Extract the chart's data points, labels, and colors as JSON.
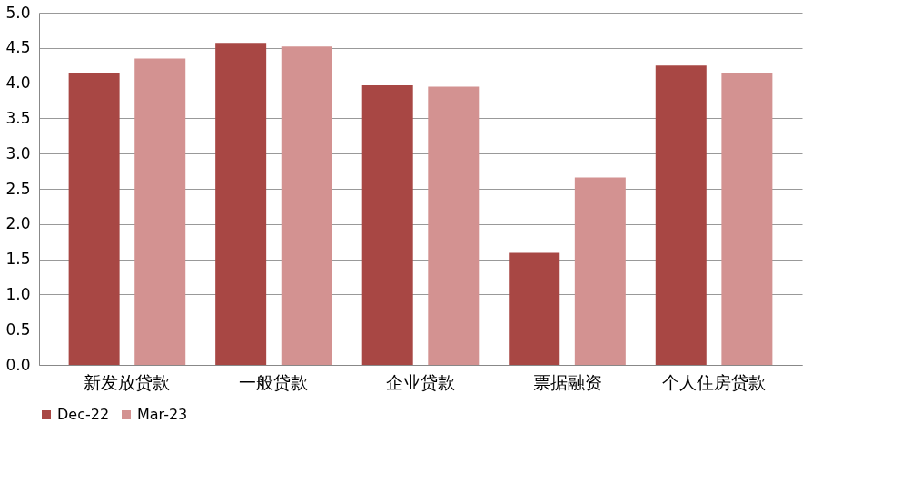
{
  "chart_data": {
    "type": "bar",
    "categories": [
      "新发放贷款",
      "一般贷款",
      "企业贷款",
      "票据融资",
      "个人住房贷款"
    ],
    "series": [
      {
        "name": "Dec-22",
        "color": "#a84744",
        "values": [
          4.15,
          4.57,
          3.97,
          1.59,
          4.25
        ]
      },
      {
        "name": "Mar-23",
        "color": "#d39291",
        "values": [
          4.35,
          4.52,
          3.95,
          2.66,
          4.15
        ]
      }
    ],
    "ylim": [
      0,
      5
    ],
    "yticks": [
      {
        "value": 0,
        "label": "0.0"
      },
      {
        "value": 0.5,
        "label": "0.5"
      },
      {
        "value": 1,
        "label": "1.0"
      },
      {
        "value": 1.5,
        "label": "1.5"
      },
      {
        "value": 2,
        "label": "2.0"
      },
      {
        "value": 2.5,
        "label": "2.5"
      },
      {
        "value": 3,
        "label": "3.0"
      },
      {
        "value": 3.5,
        "label": "3.5"
      },
      {
        "value": 4,
        "label": "4.0"
      },
      {
        "value": 4.5,
        "label": "4.5"
      },
      {
        "value": 5,
        "label": "5.0"
      }
    ],
    "grid": "y",
    "legend": "bottom"
  }
}
